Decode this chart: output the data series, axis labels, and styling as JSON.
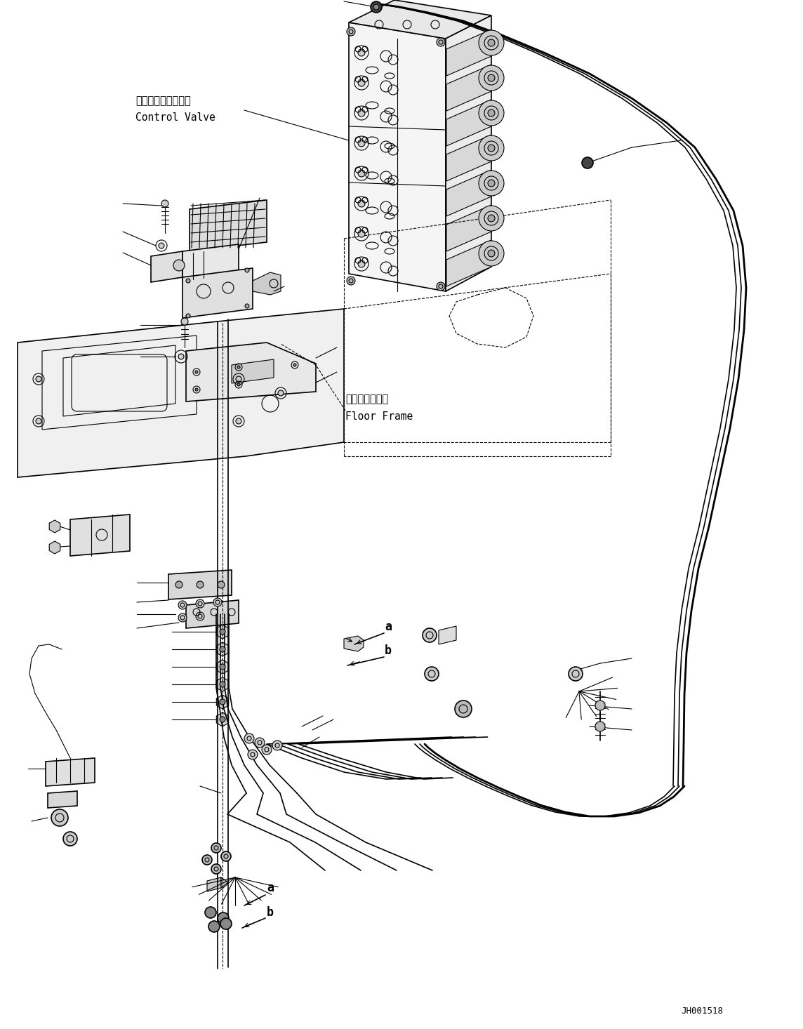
{
  "bg_color": "#ffffff",
  "lc": "#000000",
  "figure_id": "JH001518",
  "label_cv_jp": "コントロールバルブ",
  "label_cv_en": "Control Valve",
  "label_ff_jp": "フロアフレーム",
  "label_ff_en": "Floor Frame"
}
